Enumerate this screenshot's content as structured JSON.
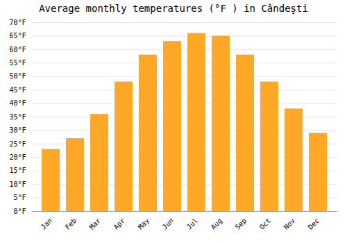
{
  "chart_data": {
    "type": "bar",
    "title": "Average monthly temperatures (°F ) in Cândeşti",
    "categories": [
      "Jan",
      "Feb",
      "Mar",
      "Apr",
      "May",
      "Jun",
      "Jul",
      "Aug",
      "Sep",
      "Oct",
      "Nov",
      "Dec"
    ],
    "values": [
      23,
      27,
      36,
      48,
      58,
      63,
      66,
      65,
      58,
      48,
      38,
      29
    ],
    "color": "#FFA726",
    "ylim": [
      0,
      70
    ],
    "yticks": [
      {
        "value": 0,
        "label": "0°F"
      },
      {
        "value": 5,
        "label": "5°F"
      },
      {
        "value": 10,
        "label": "10°F"
      },
      {
        "value": 15,
        "label": "15°F"
      },
      {
        "value": 20,
        "label": "20°F"
      },
      {
        "value": 25,
        "label": "25°F"
      },
      {
        "value": 30,
        "label": "30°F"
      },
      {
        "value": 35,
        "label": "35°F"
      },
      {
        "value": 40,
        "label": "40°F"
      },
      {
        "value": 45,
        "label": "45°F"
      },
      {
        "value": 50,
        "label": "50°F"
      },
      {
        "value": 55,
        "label": "55°F"
      },
      {
        "value": 60,
        "label": "60°F"
      },
      {
        "value": 65,
        "label": "65°F"
      },
      {
        "value": 70,
        "label": "70°F"
      }
    ],
    "grid": true
  }
}
